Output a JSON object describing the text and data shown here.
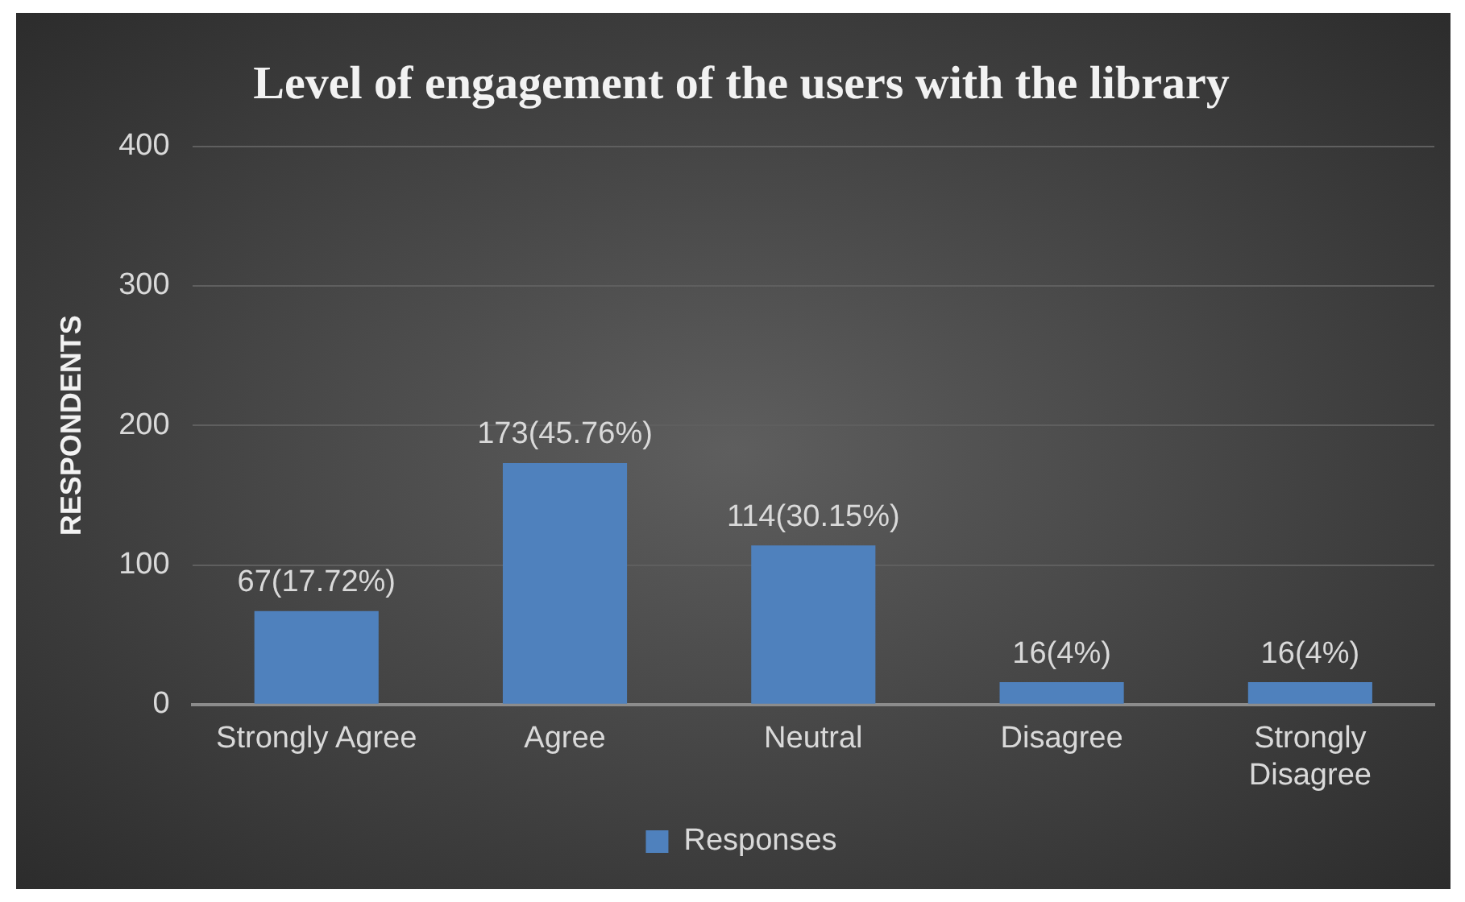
{
  "chart_data": {
    "type": "bar",
    "title": "Level of engagement of the users with the library",
    "ylabel": "RESPONDENTS",
    "categories": [
      "Strongly Agree",
      "Agree",
      "Neutral",
      "Disagree",
      "Strongly Disagree"
    ],
    "series": [
      {
        "name": "Responses",
        "color": "#4f81bd",
        "values": [
          67,
          173,
          114,
          16,
          16
        ],
        "value_labels": [
          "67(17.72%)",
          "173(45.76%)",
          "114(30.15%)",
          "16(4%)",
          "16(4%)"
        ]
      }
    ],
    "ylim": [
      0,
      400
    ],
    "yticks": [
      0,
      100,
      200,
      300,
      400
    ],
    "grid": "y",
    "legend": "bottom"
  }
}
